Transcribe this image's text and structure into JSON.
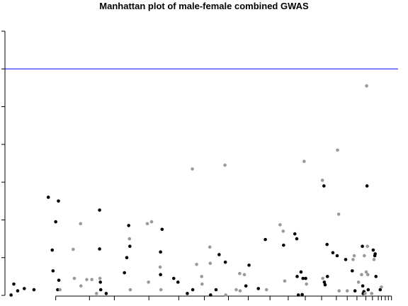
{
  "chart_data": {
    "type": "scatter",
    "title": "Manhattan plot of male-female combined GWAS",
    "xlabel": "",
    "ylabel": "",
    "xlim": [
      0,
      100
    ],
    "ylim": [
      0,
      7
    ],
    "yticks": [
      0,
      1,
      2,
      3,
      4,
      5,
      6,
      7
    ],
    "threshold": 6,
    "threshold_color": "#0000ff",
    "colors": {
      "dark": "#000000",
      "light": "#999999"
    },
    "chromosome_boundaries": [
      11.8,
      20.5,
      26.9,
      35.8,
      43.5,
      50.1,
      56.3,
      61.4,
      67.0,
      71.7,
      76.1,
      80.3,
      84.1,
      86.9,
      89.4,
      91.7,
      93.4,
      94.9,
      95.7,
      96.7,
      97.5,
      98.3
    ],
    "points": [
      {
        "x": 0.3,
        "y": 0.01,
        "c": "dark"
      },
      {
        "x": 1.0,
        "y": 0.3,
        "c": "dark"
      },
      {
        "x": 2.0,
        "y": 0.12,
        "c": "dark"
      },
      {
        "x": 3.7,
        "y": 0.18,
        "c": "dark"
      },
      {
        "x": 6.2,
        "y": 0.15,
        "c": "dark"
      },
      {
        "x": 9.9,
        "y": 2.6,
        "c": "dark"
      },
      {
        "x": 10.9,
        "y": 1.2,
        "c": "dark"
      },
      {
        "x": 11.1,
        "y": 0.65,
        "c": "dark"
      },
      {
        "x": 11.8,
        "y": 1.95,
        "c": "dark"
      },
      {
        "x": 12.3,
        "y": 0.15,
        "c": "dark"
      },
      {
        "x": 12.5,
        "y": 2.5,
        "c": "dark"
      },
      {
        "x": 12.6,
        "y": 0.4,
        "c": "dark"
      },
      {
        "x": 12.9,
        "y": 0.15,
        "c": "light"
      },
      {
        "x": 16.3,
        "y": 1.22,
        "c": "light"
      },
      {
        "x": 16.6,
        "y": 0.45,
        "c": "light"
      },
      {
        "x": 18.2,
        "y": 1.9,
        "c": "light"
      },
      {
        "x": 18.3,
        "y": 0.25,
        "c": "light"
      },
      {
        "x": 19.8,
        "y": 0.42,
        "c": "light"
      },
      {
        "x": 21.1,
        "y": 0.42,
        "c": "light"
      },
      {
        "x": 22.3,
        "y": 0.05,
        "c": "light"
      },
      {
        "x": 23.1,
        "y": 2.26,
        "c": "dark"
      },
      {
        "x": 23.1,
        "y": 1.23,
        "c": "dark"
      },
      {
        "x": 23.2,
        "y": 0.45,
        "c": "light"
      },
      {
        "x": 23.3,
        "y": 0.35,
        "c": "dark"
      },
      {
        "x": 23.4,
        "y": 0.15,
        "c": "dark"
      },
      {
        "x": 24.8,
        "y": 0.05,
        "c": "dark"
      },
      {
        "x": 29.5,
        "y": 0.6,
        "c": "dark"
      },
      {
        "x": 30.1,
        "y": 1.0,
        "c": "dark"
      },
      {
        "x": 30.6,
        "y": 1.85,
        "c": "dark"
      },
      {
        "x": 30.8,
        "y": 1.5,
        "c": "light"
      },
      {
        "x": 30.9,
        "y": 1.3,
        "c": "dark"
      },
      {
        "x": 31.0,
        "y": 0.15,
        "c": "light"
      },
      {
        "x": 35.4,
        "y": 1.9,
        "c": "light"
      },
      {
        "x": 35.7,
        "y": 0.35,
        "c": "light"
      },
      {
        "x": 36.5,
        "y": 1.95,
        "c": "light"
      },
      {
        "x": 38.7,
        "y": 0.75,
        "c": "light"
      },
      {
        "x": 38.8,
        "y": 1.15,
        "c": "dark"
      },
      {
        "x": 38.8,
        "y": 0.55,
        "c": "dark"
      },
      {
        "x": 38.9,
        "y": 0.15,
        "c": "light"
      },
      {
        "x": 39.2,
        "y": 1.75,
        "c": "dark"
      },
      {
        "x": 42.2,
        "y": 0.45,
        "c": "dark"
      },
      {
        "x": 43.3,
        "y": 0.35,
        "c": "dark"
      },
      {
        "x": 45.7,
        "y": 0.05,
        "c": "dark"
      },
      {
        "x": 47.0,
        "y": 3.35,
        "c": "light"
      },
      {
        "x": 47.1,
        "y": 0.15,
        "c": "dark"
      },
      {
        "x": 48.1,
        "y": 0.82,
        "c": "light"
      },
      {
        "x": 49.4,
        "y": 0.5,
        "c": "light"
      },
      {
        "x": 49.5,
        "y": 0.3,
        "c": "light"
      },
      {
        "x": 51.5,
        "y": 1.28,
        "c": "light"
      },
      {
        "x": 51.6,
        "y": 0.85,
        "c": "light"
      },
      {
        "x": 51.7,
        "y": 0.01,
        "c": "dark"
      },
      {
        "x": 53.1,
        "y": 0.15,
        "c": "dark"
      },
      {
        "x": 53.9,
        "y": 1.08,
        "c": "dark"
      },
      {
        "x": 55.4,
        "y": 3.45,
        "c": "light"
      },
      {
        "x": 55.5,
        "y": 0.88,
        "c": "dark"
      },
      {
        "x": 55.6,
        "y": 0.01,
        "c": "light"
      },
      {
        "x": 58.3,
        "y": 0.15,
        "c": "light"
      },
      {
        "x": 59.2,
        "y": 0.58,
        "c": "light"
      },
      {
        "x": 59.3,
        "y": 0.12,
        "c": "light"
      },
      {
        "x": 60.4,
        "y": 0.55,
        "c": "light"
      },
      {
        "x": 60.8,
        "y": 0.25,
        "c": "dark"
      },
      {
        "x": 61.6,
        "y": 0.8,
        "c": "dark"
      },
      {
        "x": 64.0,
        "y": 0.18,
        "c": "dark"
      },
      {
        "x": 65.8,
        "y": 1.48,
        "c": "dark"
      },
      {
        "x": 66.1,
        "y": 0.15,
        "c": "light"
      },
      {
        "x": 69.6,
        "y": 1.87,
        "c": "light"
      },
      {
        "x": 70.4,
        "y": 1.7,
        "c": "light"
      },
      {
        "x": 70.5,
        "y": 1.33,
        "c": "dark"
      },
      {
        "x": 70.8,
        "y": 0.38,
        "c": "light"
      },
      {
        "x": 73.4,
        "y": 1.63,
        "c": "dark"
      },
      {
        "x": 73.9,
        "y": 1.5,
        "c": "dark"
      },
      {
        "x": 74.0,
        "y": 0.5,
        "c": "dark"
      },
      {
        "x": 74.3,
        "y": 0.01,
        "c": "dark"
      },
      {
        "x": 75.0,
        "y": 0.62,
        "c": "dark"
      },
      {
        "x": 75.3,
        "y": 0.02,
        "c": "dark"
      },
      {
        "x": 75.5,
        "y": 0.45,
        "c": "dark"
      },
      {
        "x": 75.8,
        "y": 3.55,
        "c": "light"
      },
      {
        "x": 76.2,
        "y": 0.45,
        "c": "dark"
      },
      {
        "x": 76.4,
        "y": 0.3,
        "c": "light"
      },
      {
        "x": 80.5,
        "y": 3.05,
        "c": "light"
      },
      {
        "x": 80.6,
        "y": 0.45,
        "c": "light"
      },
      {
        "x": 80.9,
        "y": 2.9,
        "c": "dark"
      },
      {
        "x": 81.0,
        "y": 0.35,
        "c": "dark"
      },
      {
        "x": 81.2,
        "y": 0.28,
        "c": "dark"
      },
      {
        "x": 81.7,
        "y": 1.35,
        "c": "dark"
      },
      {
        "x": 81.8,
        "y": 0.5,
        "c": "dark"
      },
      {
        "x": 83.2,
        "y": 1.13,
        "c": "dark"
      },
      {
        "x": 84.3,
        "y": 1.05,
        "c": "dark"
      },
      {
        "x": 84.4,
        "y": 3.85,
        "c": "light"
      },
      {
        "x": 84.7,
        "y": 2.15,
        "c": "light"
      },
      {
        "x": 84.8,
        "y": 0.12,
        "c": "light"
      },
      {
        "x": 86.5,
        "y": 0.95,
        "c": "dark"
      },
      {
        "x": 86.9,
        "y": 0.12,
        "c": "light"
      },
      {
        "x": 88.2,
        "y": 0.65,
        "c": "dark"
      },
      {
        "x": 88.4,
        "y": 0.95,
        "c": "light"
      },
      {
        "x": 88.7,
        "y": 1.05,
        "c": "light"
      },
      {
        "x": 88.9,
        "y": 0.12,
        "c": "dark"
      },
      {
        "x": 89.8,
        "y": 0.35,
        "c": "light"
      },
      {
        "x": 90.6,
        "y": 0.55,
        "c": "light"
      },
      {
        "x": 90.8,
        "y": 1.3,
        "c": "dark"
      },
      {
        "x": 90.9,
        "y": 0.25,
        "c": "dark"
      },
      {
        "x": 91.0,
        "y": 0.05,
        "c": "dark"
      },
      {
        "x": 91.2,
        "y": 0.1,
        "c": "dark"
      },
      {
        "x": 91.3,
        "y": 1.05,
        "c": "light"
      },
      {
        "x": 91.5,
        "y": 0.05,
        "c": "light"
      },
      {
        "x": 91.8,
        "y": 0.62,
        "c": "light"
      },
      {
        "x": 91.9,
        "y": 5.55,
        "c": "light"
      },
      {
        "x": 92.0,
        "y": 2.9,
        "c": "dark"
      },
      {
        "x": 92.1,
        "y": 1.3,
        "c": "light"
      },
      {
        "x": 92.2,
        "y": 0.55,
        "c": "light"
      },
      {
        "x": 92.3,
        "y": 0.15,
        "c": "dark"
      },
      {
        "x": 93.2,
        "y": 0.05,
        "c": "light"
      },
      {
        "x": 93.6,
        "y": 1.2,
        "c": "dark"
      },
      {
        "x": 93.8,
        "y": 0.95,
        "c": "light"
      },
      {
        "x": 94.0,
        "y": 1.05,
        "c": "dark"
      },
      {
        "x": 94.1,
        "y": 1.1,
        "c": "dark"
      },
      {
        "x": 94.3,
        "y": 0.5,
        "c": "dark"
      },
      {
        "x": 95.4,
        "y": 0.15,
        "c": "dark"
      },
      {
        "x": 95.7,
        "y": 0.22,
        "c": "light"
      }
    ]
  }
}
